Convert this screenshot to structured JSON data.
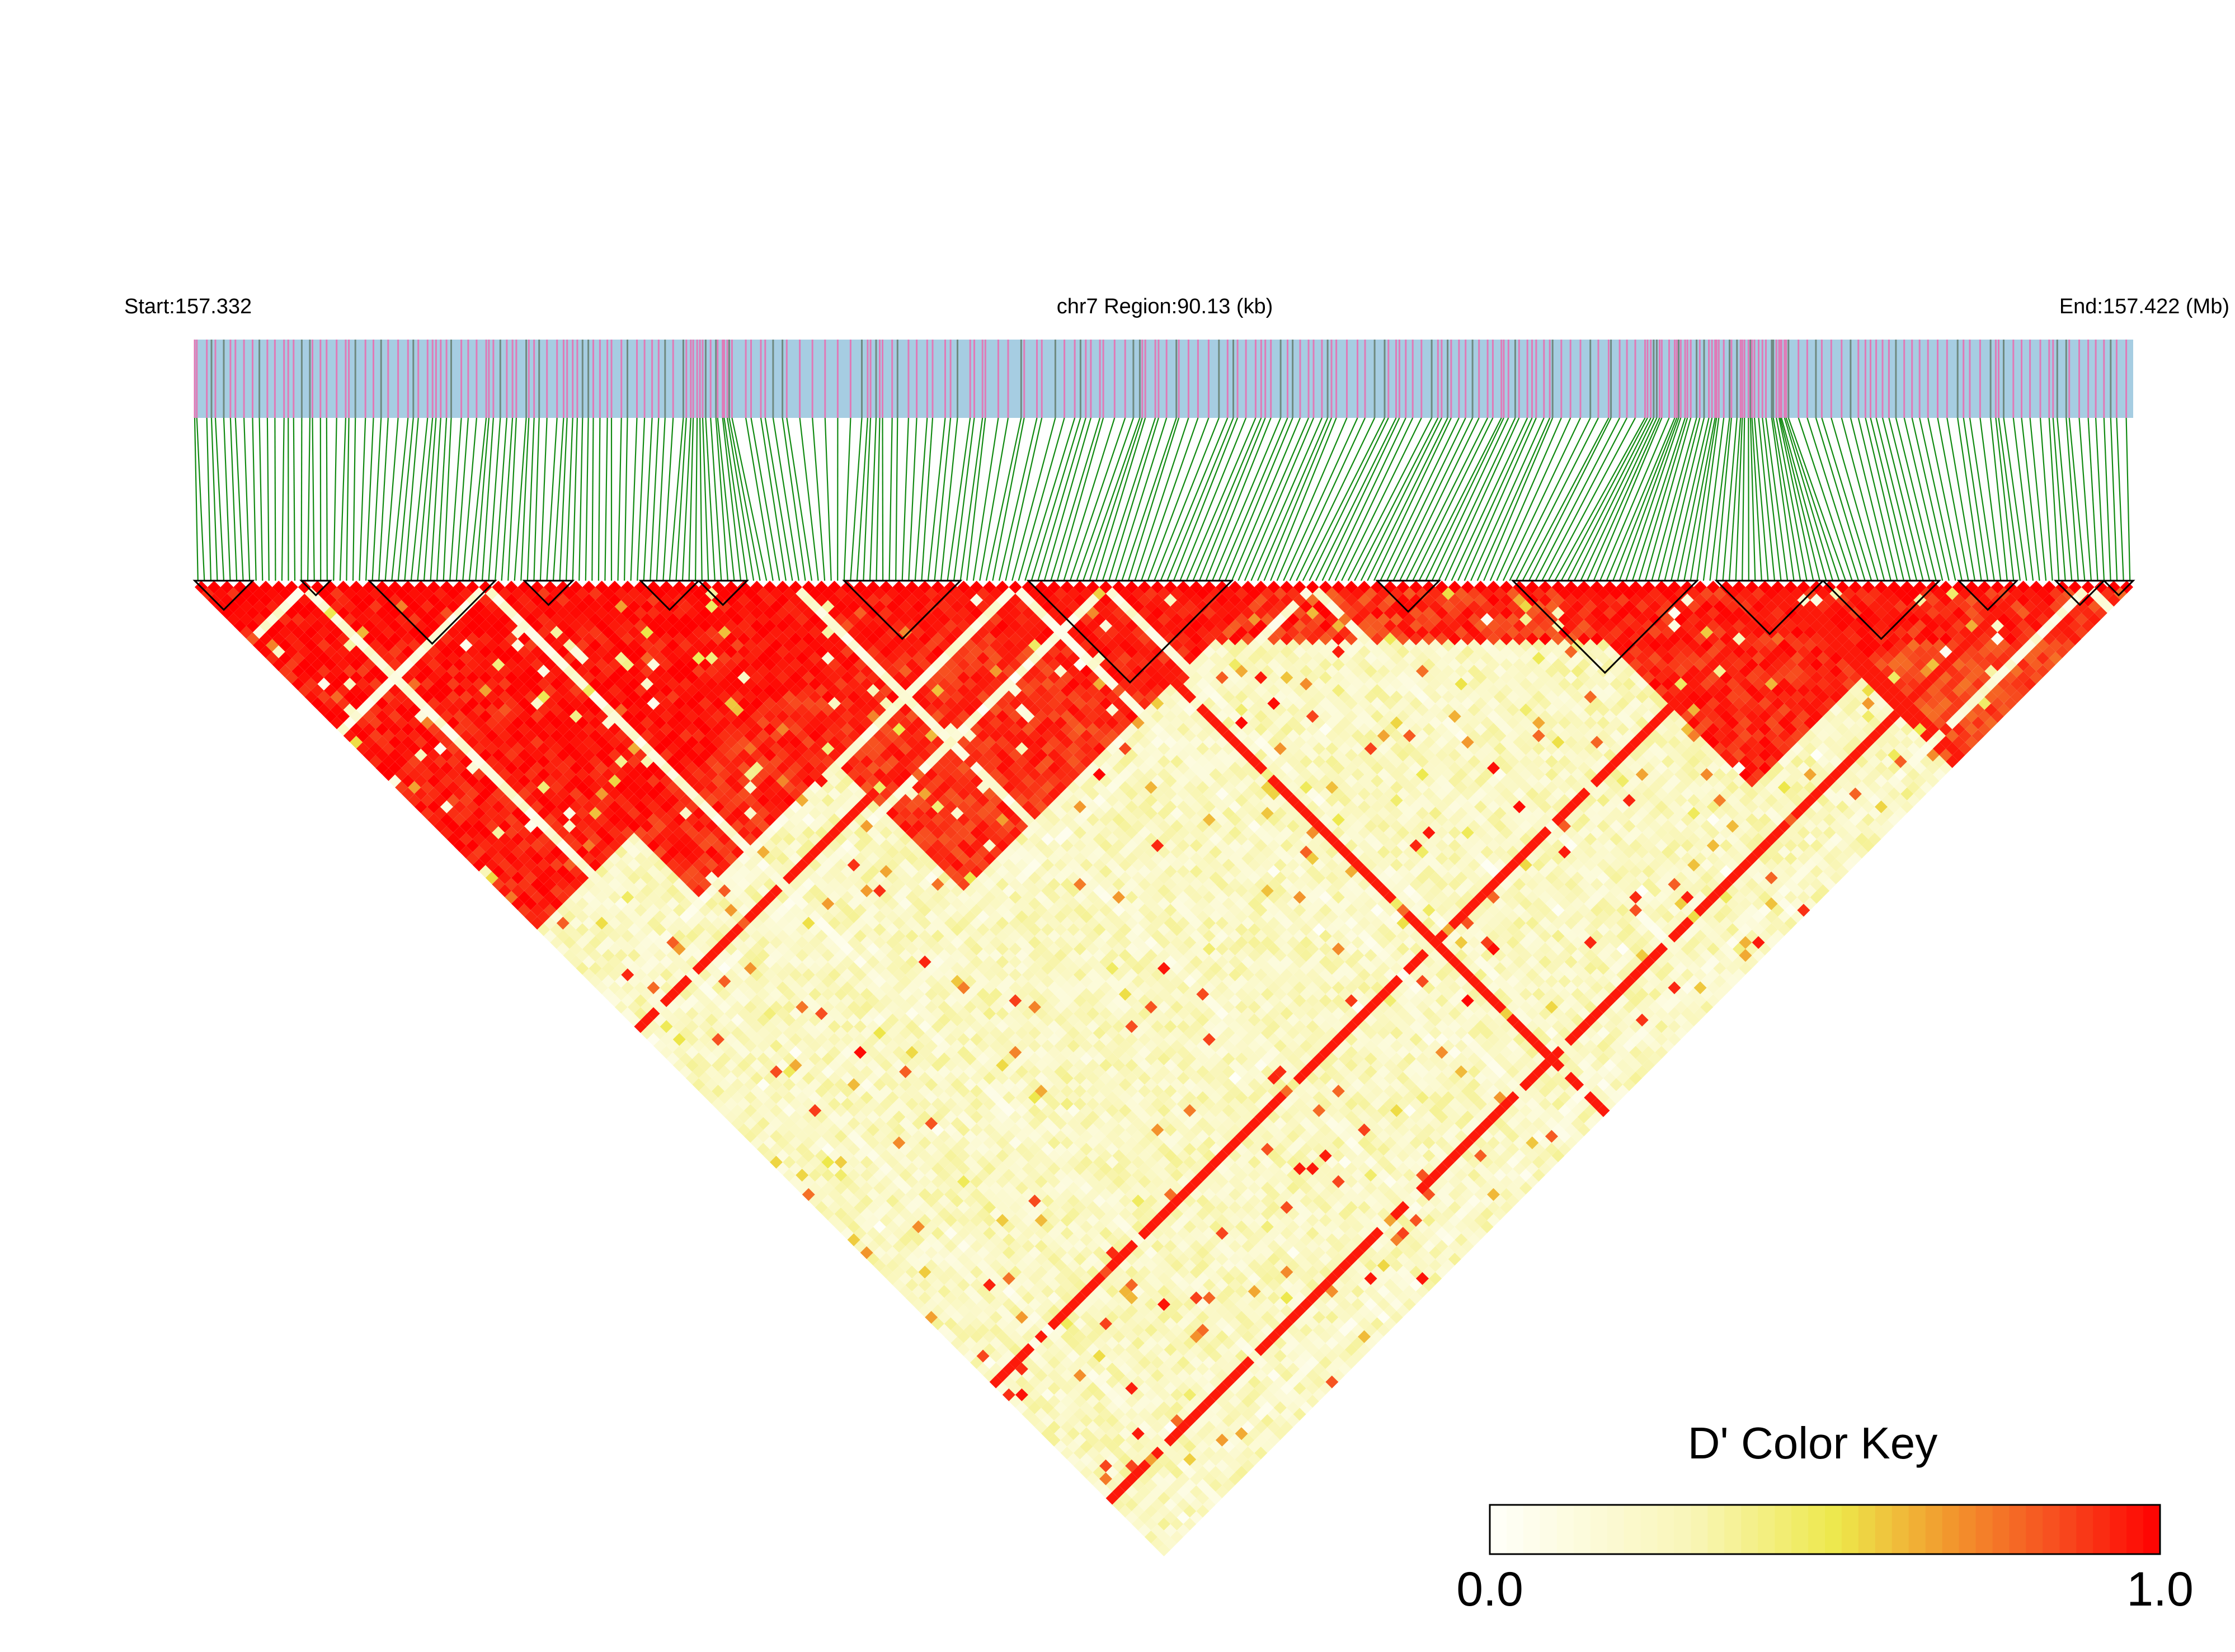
{
  "header": {
    "start_label": "Start:157.332",
    "region_label": "chr7 Region:90.13 (kb)",
    "end_label": "End:157.422 (Mb)"
  },
  "colors": {
    "track_background": "#a6cde2",
    "snp_pink": "#e07ab7",
    "snp_gray": "#6f8a80",
    "connector_green": "#118a11",
    "block_outline": "#000000",
    "key_low": "#fffff3",
    "key_mid": "#ede84a",
    "key_high": "#ff0000"
  },
  "chart_data": {
    "type": "heatmap",
    "description_kind": "LD triangle heatmap (D')",
    "chromosome": "chr7",
    "region_start_mb": 157.332,
    "region_end_mb": 157.422,
    "region_length_kb": 90.13,
    "legend": {
      "title": "D' Color Key",
      "min_label": "0.0",
      "max_label": "1.0",
      "min": 0.0,
      "max": 1.0
    },
    "approx_snp_count": 300,
    "haplotype_blocks_fraction": [
      [
        0.0,
        0.03
      ],
      [
        0.055,
        0.07
      ],
      [
        0.09,
        0.155
      ],
      [
        0.17,
        0.195
      ],
      [
        0.23,
        0.26
      ],
      [
        0.26,
        0.285
      ],
      [
        0.335,
        0.395
      ],
      [
        0.43,
        0.535
      ],
      [
        0.61,
        0.642
      ],
      [
        0.68,
        0.775
      ],
      [
        0.785,
        0.84
      ],
      [
        0.84,
        0.9
      ],
      [
        0.91,
        0.94
      ],
      [
        0.96,
        0.985
      ],
      [
        0.985,
        1.0
      ]
    ],
    "high_ld_regions_fraction": [
      [
        0.0,
        0.35,
        0.95
      ],
      [
        0.1,
        0.42,
        0.92
      ],
      [
        0.24,
        0.55,
        0.9
      ],
      [
        0.4,
        0.55,
        0.92
      ],
      [
        0.7,
        0.9,
        0.92
      ],
      [
        0.82,
        1.0,
        0.85
      ]
    ]
  }
}
